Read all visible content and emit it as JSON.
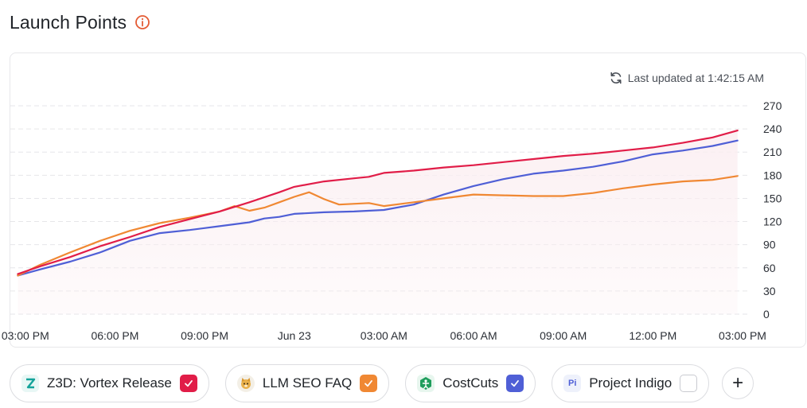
{
  "header": {
    "title": "Launch Points",
    "info_icon": "info-circle-icon"
  },
  "status": {
    "last_updated": "Last updated at 1:42:15 AM",
    "icon": "refresh-icon"
  },
  "colors": {
    "red": "#e11d48",
    "orange": "#f08833",
    "blue": "#4f5fd6",
    "grid": "#e6e6e9",
    "fill": "#fbeef1"
  },
  "legend": [
    {
      "label": "Z3D: Vortex Release",
      "logo_icon": "z3d-logo-icon",
      "checked": true,
      "color": "#e11d48"
    },
    {
      "label": "LLM SEO FAQ",
      "logo_icon": "cat-avatar-icon",
      "checked": true,
      "color": "#f08833"
    },
    {
      "label": "CostCuts",
      "logo_icon": "costcuts-logo-icon",
      "checked": true,
      "color": "#4f5fd6"
    },
    {
      "label": "Project Indigo",
      "logo_icon": "pi-logo-icon",
      "logo_text": "Pi",
      "checked": false,
      "color": "#6b7280"
    }
  ],
  "add_button": {
    "label": "+",
    "icon": "plus-icon"
  },
  "chart_data": {
    "type": "line",
    "xlabel": "",
    "ylabel": "",
    "ylim": [
      0,
      270
    ],
    "yticks": [
      0,
      30,
      60,
      90,
      120,
      150,
      180,
      210,
      240,
      270
    ],
    "xlim": [
      "2024-06-22T14:30",
      "2024-06-23T15:00"
    ],
    "xticks": [
      {
        "t": "2024-06-22T15:00",
        "label": "03:00 PM"
      },
      {
        "t": "2024-06-22T18:00",
        "label": "06:00 PM"
      },
      {
        "t": "2024-06-22T21:00",
        "label": "09:00 PM"
      },
      {
        "t": "2024-06-23T00:00",
        "label": "Jun 23"
      },
      {
        "t": "2024-06-23T03:00",
        "label": "03:00 AM"
      },
      {
        "t": "2024-06-23T06:00",
        "label": "06:00 AM"
      },
      {
        "t": "2024-06-23T09:00",
        "label": "09:00 AM"
      },
      {
        "t": "2024-06-23T12:00",
        "label": "12:00 PM"
      },
      {
        "t": "2024-06-23T15:00",
        "label": "03:00 PM"
      }
    ],
    "grid": true,
    "y_axis_position": "right",
    "series": [
      {
        "name": "Z3D: Vortex Release",
        "color": "#e11d48",
        "filled": true,
        "points": [
          [
            "2024-06-22T14:45",
            52
          ],
          [
            "2024-06-22T15:30",
            62
          ],
          [
            "2024-06-22T16:30",
            74
          ],
          [
            "2024-06-22T17:30",
            88
          ],
          [
            "2024-06-22T18:30",
            100
          ],
          [
            "2024-06-22T19:30",
            113
          ],
          [
            "2024-06-22T20:30",
            123
          ],
          [
            "2024-06-22T21:30",
            133
          ],
          [
            "2024-06-22T22:30",
            145
          ],
          [
            "2024-06-22T23:30",
            158
          ],
          [
            "2024-06-23T00:00",
            165
          ],
          [
            "2024-06-23T01:00",
            172
          ],
          [
            "2024-06-23T02:00",
            176
          ],
          [
            "2024-06-23T02:30",
            178
          ],
          [
            "2024-06-23T03:00",
            183
          ],
          [
            "2024-06-23T04:00",
            186
          ],
          [
            "2024-06-23T05:00",
            190
          ],
          [
            "2024-06-23T06:00",
            193
          ],
          [
            "2024-06-23T07:00",
            197
          ],
          [
            "2024-06-23T08:00",
            201
          ],
          [
            "2024-06-23T09:00",
            205
          ],
          [
            "2024-06-23T10:00",
            208
          ],
          [
            "2024-06-23T11:00",
            212
          ],
          [
            "2024-06-23T12:00",
            216
          ],
          [
            "2024-06-23T13:00",
            222
          ],
          [
            "2024-06-23T14:00",
            229
          ],
          [
            "2024-06-23T14:50",
            238
          ]
        ]
      },
      {
        "name": "LLM SEO FAQ",
        "color": "#f08833",
        "filled": false,
        "points": [
          [
            "2024-06-22T14:45",
            50
          ],
          [
            "2024-06-22T15:30",
            64
          ],
          [
            "2024-06-22T16:30",
            80
          ],
          [
            "2024-06-22T17:30",
            95
          ],
          [
            "2024-06-22T18:30",
            108
          ],
          [
            "2024-06-22T19:30",
            118
          ],
          [
            "2024-06-22T20:30",
            125
          ],
          [
            "2024-06-22T21:30",
            133
          ],
          [
            "2024-06-22T22:00",
            140
          ],
          [
            "2024-06-22T22:30",
            134
          ],
          [
            "2024-06-22T23:00",
            138
          ],
          [
            "2024-06-22T23:30",
            145
          ],
          [
            "2024-06-23T00:00",
            152
          ],
          [
            "2024-06-23T00:30",
            158
          ],
          [
            "2024-06-23T01:00",
            149
          ],
          [
            "2024-06-23T01:30",
            142
          ],
          [
            "2024-06-23T02:30",
            144
          ],
          [
            "2024-06-23T03:00",
            140
          ],
          [
            "2024-06-23T04:00",
            145
          ],
          [
            "2024-06-23T05:00",
            150
          ],
          [
            "2024-06-23T06:00",
            155
          ],
          [
            "2024-06-23T07:00",
            154
          ],
          [
            "2024-06-23T08:00",
            153
          ],
          [
            "2024-06-23T09:00",
            153
          ],
          [
            "2024-06-23T10:00",
            157
          ],
          [
            "2024-06-23T11:00",
            163
          ],
          [
            "2024-06-23T12:00",
            168
          ],
          [
            "2024-06-23T13:00",
            172
          ],
          [
            "2024-06-23T14:00",
            174
          ],
          [
            "2024-06-23T14:50",
            179
          ]
        ]
      },
      {
        "name": "CostCuts",
        "color": "#4f5fd6",
        "filled": false,
        "points": [
          [
            "2024-06-22T14:45",
            50
          ],
          [
            "2024-06-22T15:30",
            58
          ],
          [
            "2024-06-22T16:30",
            68
          ],
          [
            "2024-06-22T17:30",
            80
          ],
          [
            "2024-06-22T18:30",
            95
          ],
          [
            "2024-06-22T19:30",
            105
          ],
          [
            "2024-06-22T20:30",
            109
          ],
          [
            "2024-06-22T21:30",
            114
          ],
          [
            "2024-06-22T22:30",
            119
          ],
          [
            "2024-06-22T23:00",
            124
          ],
          [
            "2024-06-22T23:30",
            126
          ],
          [
            "2024-06-23T00:00",
            130
          ],
          [
            "2024-06-23T01:00",
            132
          ],
          [
            "2024-06-23T02:00",
            133
          ],
          [
            "2024-06-23T03:00",
            135
          ],
          [
            "2024-06-23T04:00",
            142
          ],
          [
            "2024-06-23T05:00",
            155
          ],
          [
            "2024-06-23T06:00",
            166
          ],
          [
            "2024-06-23T07:00",
            175
          ],
          [
            "2024-06-23T08:00",
            182
          ],
          [
            "2024-06-23T09:00",
            186
          ],
          [
            "2024-06-23T10:00",
            191
          ],
          [
            "2024-06-23T11:00",
            198
          ],
          [
            "2024-06-23T12:00",
            207
          ],
          [
            "2024-06-23T13:00",
            212
          ],
          [
            "2024-06-23T14:00",
            218
          ],
          [
            "2024-06-23T14:50",
            225
          ]
        ]
      }
    ]
  }
}
